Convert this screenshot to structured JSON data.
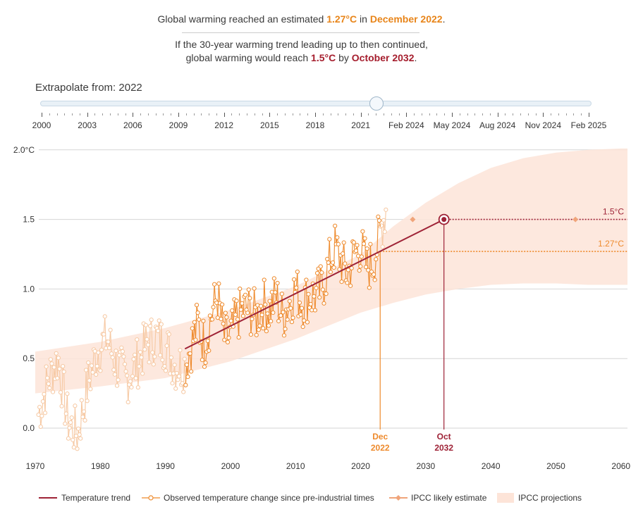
{
  "headline": {
    "prefix": "Global warming reached an estimated ",
    "value": "1.27°C",
    "mid": " in ",
    "date": "December 2022",
    "suffix": "."
  },
  "projection_text": {
    "line1": "If the 30-year warming trend leading up to then continued,",
    "line2_prefix": "global warming would reach ",
    "value": "1.5°C",
    "mid": " by ",
    "date": "October 2032",
    "suffix": "."
  },
  "slider": {
    "label": "Extrapolate from: 2022",
    "position_fraction": 0.61,
    "ticks": [
      "2000",
      "2003",
      "2006",
      "2009",
      "2012",
      "2015",
      "2018",
      "2021",
      "Feb 2024",
      "May 2024",
      "Aug 2024",
      "Nov 2024",
      "Feb 2025"
    ]
  },
  "colors": {
    "trend": "#9e2236",
    "observed": "#ee8a2c",
    "observed_faded": "#f6c8a2",
    "projection_band": "#fde4d8",
    "ipcc_likely": "#f0a47a",
    "grid": "#d6d6d6"
  },
  "chart_data": {
    "type": "line",
    "x_ticks": [
      "1970",
      "1980",
      "1990",
      "2000",
      "2010",
      "2020",
      "2030",
      "2040",
      "2050",
      "2060"
    ],
    "y_ticks": [
      "0.0",
      "0.5",
      "1.0",
      "1.5",
      "2.0°C"
    ],
    "xlim": [
      1970,
      2061
    ],
    "ylim": [
      -0.25,
      2.05
    ],
    "trend": {
      "name": "Temperature trend",
      "x": [
        1993,
        2032.8
      ],
      "y": [
        0.57,
        1.5
      ]
    },
    "reference_lines": [
      {
        "label": "1.5°C",
        "y": 1.5,
        "x_start": 2032.8
      },
      {
        "label": "1.27°C",
        "y": 1.27,
        "x_start": 2023.0
      }
    ],
    "markers": [
      {
        "month": "Dec",
        "year": "2022",
        "x": 2023.0,
        "y": 1.27
      },
      {
        "month": "Oct",
        "year": "2032",
        "x": 2032.8,
        "y": 1.5
      }
    ],
    "ipcc_likely_estimate": {
      "x": [
        2028,
        2053
      ],
      "y": [
        1.5,
        1.5
      ]
    },
    "ipcc_band": {
      "x": [
        1970,
        1980,
        1990,
        2000,
        2010,
        2020,
        2025,
        2030,
        2035,
        2040,
        2045,
        2050,
        2055,
        2060,
        2061
      ],
      "upper": [
        0.55,
        0.62,
        0.72,
        0.85,
        1.02,
        1.25,
        1.45,
        1.62,
        1.76,
        1.87,
        1.94,
        1.98,
        2.0,
        2.01,
        2.01
      ],
      "lower": [
        0.25,
        0.3,
        0.36,
        0.48,
        0.64,
        0.83,
        0.9,
        0.96,
        1.0,
        1.03,
        1.04,
        1.04,
        1.03,
        1.03,
        1.03
      ]
    },
    "observed": {
      "name": "Observed temperature change since pre-industrial times",
      "faded_before": 1993,
      "faded_after": 2023,
      "x": [
        1970.5,
        1972,
        1973.5,
        1975,
        1976.5,
        1978,
        1979.5,
        1981,
        1982.5,
        1984,
        1985.5,
        1987,
        1988.5,
        1990,
        1991.5,
        1993,
        1994,
        1995,
        1996,
        1997,
        1998,
        1999,
        2000,
        2001,
        2002,
        2003,
        2004,
        2005,
        2006,
        2007,
        2008,
        2009,
        2010,
        2011,
        2012,
        2013,
        2014,
        2015,
        2016,
        2017,
        2018,
        2019,
        2020,
        2021,
        2022,
        2023,
        2024
      ],
      "y": [
        0.1,
        0.35,
        0.5,
        0.05,
        -0.05,
        0.3,
        0.55,
        0.65,
        0.45,
        0.35,
        0.45,
        0.6,
        0.65,
        0.6,
        0.45,
        0.45,
        0.6,
        0.75,
        0.6,
        0.8,
        0.95,
        0.65,
        0.65,
        0.8,
        0.85,
        0.85,
        0.8,
        0.9,
        0.85,
        0.95,
        0.8,
        0.9,
        1.0,
        0.9,
        0.95,
        0.95,
        1.0,
        1.15,
        1.3,
        1.2,
        1.1,
        1.25,
        1.3,
        1.15,
        1.2,
        1.4,
        1.6
      ]
    }
  },
  "legend": [
    {
      "label": "Temperature trend"
    },
    {
      "label": "Observed temperature change since pre-industrial times"
    },
    {
      "label": "IPCC likely estimate"
    },
    {
      "label": "IPCC projections"
    }
  ]
}
